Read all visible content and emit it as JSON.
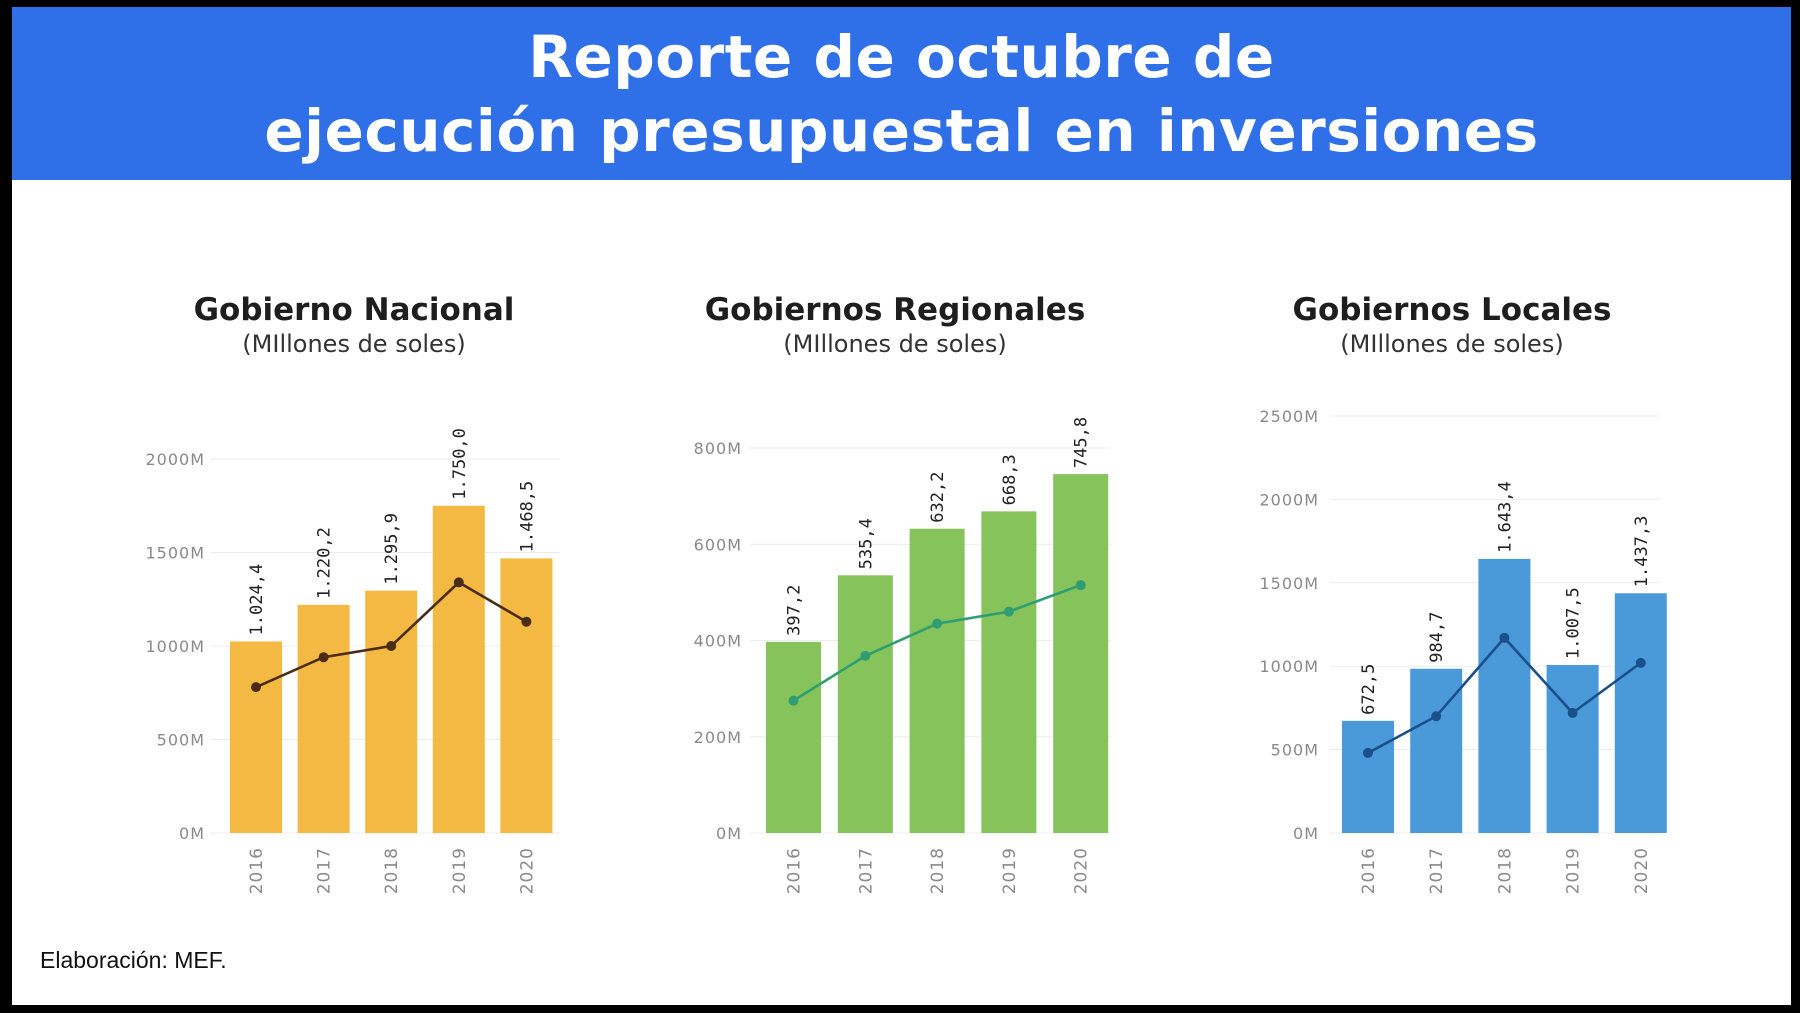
{
  "header": {
    "title_line1": "Reporte de octubre de",
    "title_line2": "ejecución presupuestal en inversiones"
  },
  "footer": {
    "source": "Elaboración: MEF."
  },
  "chart_data": [
    {
      "type": "bar",
      "title": "Gobierno Nacional",
      "subtitle": "(MIllones de soles)",
      "categories": [
        "2016",
        "2017",
        "2018",
        "2019",
        "2020"
      ],
      "values": [
        1024.4,
        1220.2,
        1295.9,
        1750.0,
        1468.5
      ],
      "value_labels": [
        "1.024,4",
        "1.220,2",
        "1.295,9",
        "1.750,0",
        "1.468,5"
      ],
      "line_values": [
        780,
        940,
        1000,
        1340,
        1130
      ],
      "yticks": [
        0,
        500,
        1000,
        1500,
        2000
      ],
      "ytick_labels": [
        "0M",
        "500M",
        "1000M",
        "1500M",
        "2000M"
      ],
      "ylim": [
        0,
        2000
      ],
      "bar_color": "#f4b942",
      "line_color": "#4a2c14",
      "grid": true
    },
    {
      "type": "bar",
      "title": "Gobiernos Regionales",
      "subtitle": "(MIllones de soles)",
      "categories": [
        "2016",
        "2017",
        "2018",
        "2019",
        "2020"
      ],
      "values": [
        397.2,
        535.4,
        632.2,
        668.3,
        745.8
      ],
      "value_labels": [
        "397,2",
        "535,4",
        "632,2",
        "668,3",
        "745,8"
      ],
      "line_values": [
        275,
        368,
        435,
        460,
        515
      ],
      "yticks": [
        0,
        200,
        400,
        600,
        800
      ],
      "ytick_labels": [
        "0M",
        "200M",
        "400M",
        "600M",
        "800M"
      ],
      "ylim": [
        0,
        800
      ],
      "bar_color": "#86c35a",
      "line_color": "#2f9e73",
      "grid": true
    },
    {
      "type": "bar",
      "title": "Gobiernos Locales",
      "subtitle": "(MIllones de soles)",
      "categories": [
        "2016",
        "2017",
        "2018",
        "2019",
        "2020"
      ],
      "values": [
        672.5,
        984.7,
        1643.4,
        1007.5,
        1437.3
      ],
      "value_labels": [
        "672,5",
        "984,7",
        "1.643,4",
        "1.007,5",
        "1.437,3"
      ],
      "line_values": [
        480,
        700,
        1170,
        720,
        1020
      ],
      "yticks": [
        0,
        500,
        1000,
        1500,
        2000,
        2500
      ],
      "ytick_labels": [
        "0M",
        "500M",
        "1000M",
        "1500M",
        "2000M",
        "2500M"
      ],
      "ylim": [
        0,
        2500
      ],
      "bar_color": "#4a9ad9",
      "line_color": "#1a4f8a",
      "grid": true
    }
  ]
}
